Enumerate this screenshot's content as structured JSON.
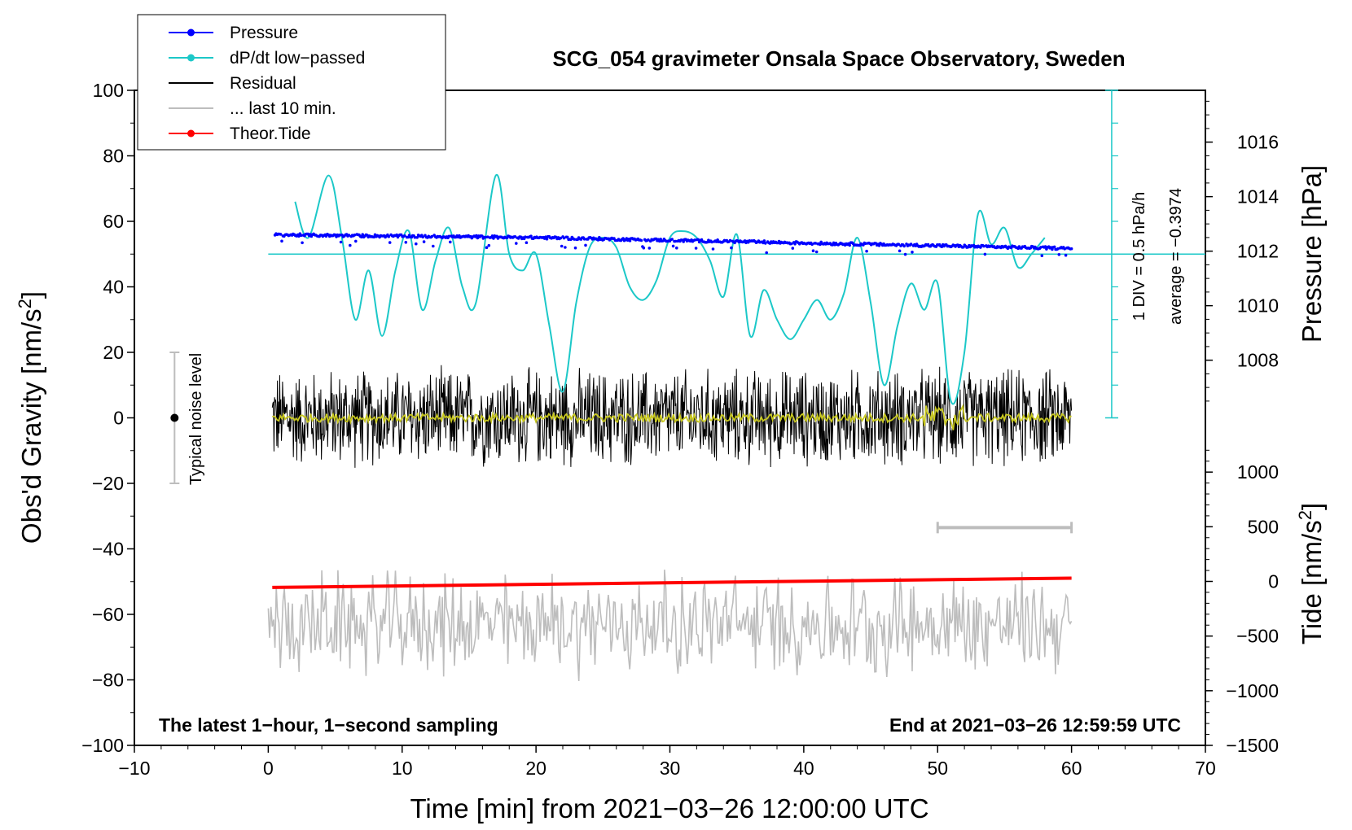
{
  "chart_data": {
    "type": "line",
    "title": "SCG_054 gravimeter Onsala Space Observatory, Sweden",
    "xlabel": "Time [min] from 2021−03−26 12:00:00 UTC",
    "ylabel": "Obs'd Gravity [nm/s²]",
    "ylabel_main": "Obs'd Gravity [nm/s",
    "ylabel_sup": "2",
    "ylabel_close": "]",
    "xlim": [
      -10,
      70
    ],
    "ylim": [
      -100,
      100
    ],
    "x_ticks": [
      "−10",
      "0",
      "10",
      "20",
      "30",
      "40",
      "50",
      "60",
      "70"
    ],
    "y_ticks": [
      "−100",
      "−80",
      "−60",
      "−40",
      "−20",
      "0",
      "20",
      "40",
      "60",
      "80",
      "100"
    ],
    "pressure_axis": {
      "label": "Pressure [hPa]",
      "ticks": [
        "1008",
        "1010",
        "1012",
        "1014",
        "1016"
      ],
      "range": [
        1005.9,
        1017.9
      ]
    },
    "tide_axis": {
      "label_main": "Tide [nm/s",
      "label_sup": "2",
      "label_close": "]",
      "ticks": [
        "−1500",
        "−1000",
        "−500",
        "0",
        "500",
        "1000"
      ],
      "range": [
        -1500,
        1500
      ]
    },
    "legend": {
      "placement": "top-left",
      "entries": [
        {
          "label": "Pressure",
          "color": "#0000ff",
          "marker": true
        },
        {
          "label": "dP/dt low−passed",
          "color": "#1cc8c8",
          "marker": true
        },
        {
          "label": "Residual",
          "color": "#000000",
          "marker": false
        },
        {
          "label": "... last 10 min.",
          "color": "#bdbdbd",
          "marker": false
        },
        {
          "label": "Theor.Tide",
          "color": "#ff0000",
          "marker": true
        }
      ]
    },
    "annotations": {
      "noise_label": "Typical noise level",
      "noise_range": [
        -20,
        20
      ],
      "noise_x": -7,
      "dpdt_scale": "1 DIV = 0.5 hPa/h",
      "dpdt_average": "average = −0.3974",
      "dpdt_zero_y": 50,
      "bottom_left": "The latest 1−hour, 1−second sampling",
      "bottom_right": "End at 2021−03−26 12:59:59 UTC",
      "last10_bar": [
        50,
        60
      ]
    },
    "series": [
      {
        "name": "Pressure",
        "color": "#0000ff",
        "axis": "pressure",
        "x": [
          0.5,
          10,
          20,
          30,
          40,
          50,
          60
        ],
        "values": [
          1012.6,
          1012.55,
          1012.5,
          1012.4,
          1012.3,
          1012.2,
          1012.1
        ]
      },
      {
        "name": "dP/dt low−passed",
        "color": "#1cc8c8",
        "axis": "gravity_div",
        "x": [
          2,
          3,
          4.5,
          5.5,
          6.5,
          7.5,
          8.5,
          9.5,
          10.5,
          11.5,
          12.5,
          13.5,
          14.5,
          15.5,
          17,
          18,
          19,
          20,
          21,
          22,
          23,
          24,
          25,
          26,
          27,
          28,
          29,
          30,
          31,
          32,
          33,
          34,
          35,
          36,
          37,
          38,
          39,
          40,
          41,
          42,
          43,
          44,
          45,
          46,
          47,
          48,
          49,
          50,
          51,
          52,
          53,
          54,
          55,
          56,
          57,
          58
        ],
        "values": [
          66,
          55,
          74,
          55,
          30,
          45,
          25,
          45,
          57,
          33,
          48,
          58,
          40,
          35,
          74,
          50,
          45,
          50,
          28,
          8,
          35,
          52,
          55,
          52,
          40,
          36,
          42,
          55,
          57,
          55,
          48,
          37,
          56,
          25,
          39,
          30,
          24,
          30,
          36,
          30,
          38,
          55,
          35,
          10,
          28,
          41,
          33,
          41,
          5,
          20,
          62,
          53,
          58,
          46,
          50,
          55
        ]
      },
      {
        "name": "Residual",
        "color": "#000000",
        "axis": "gravity",
        "x": [
          0.3,
          60
        ],
        "values": [
          0,
          0
        ],
        "amplitude": 12
      },
      {
        "name": "Smoothed residual",
        "color": "#c8c820",
        "axis": "gravity",
        "x": [
          0.3,
          60
        ],
        "values": [
          0,
          0
        ]
      },
      {
        "name": "... last 10 min.",
        "color": "#bdbdbd",
        "axis": "gravity",
        "x": [
          0,
          60
        ],
        "values": [
          -63,
          -63
        ],
        "amplitude": 12
      },
      {
        "name": "Theor.Tide",
        "color": "#ff0000",
        "axis": "tide",
        "x": [
          0.3,
          60
        ],
        "values": [
          -55,
          30
        ]
      }
    ]
  }
}
